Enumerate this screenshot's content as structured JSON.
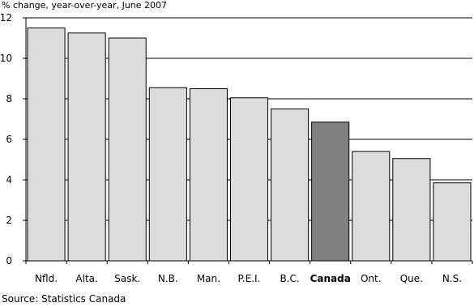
{
  "chart_data": {
    "type": "bar",
    "subtitle": "% change, year-over-year, June 2007",
    "source": "Source: Statistics Canada",
    "categories": [
      "Nfld.",
      "Alta.",
      "Sask.",
      "N.B.",
      "Man.",
      "P.E.I.",
      "B.C.",
      "Canada",
      "Ont.",
      "Que.",
      "N.S."
    ],
    "values": [
      11.5,
      11.25,
      11.0,
      8.55,
      8.5,
      8.05,
      7.5,
      6.85,
      5.4,
      5.05,
      3.85
    ],
    "highlight": "Canada",
    "ylim": [
      0,
      12
    ],
    "yticks": [
      0,
      2,
      4,
      6,
      8,
      10,
      12
    ],
    "grid": true,
    "colors": {
      "bar": "#dcdcdc",
      "highlight_bar": "#808080",
      "outline": "#000000",
      "grid": "#000000"
    }
  }
}
